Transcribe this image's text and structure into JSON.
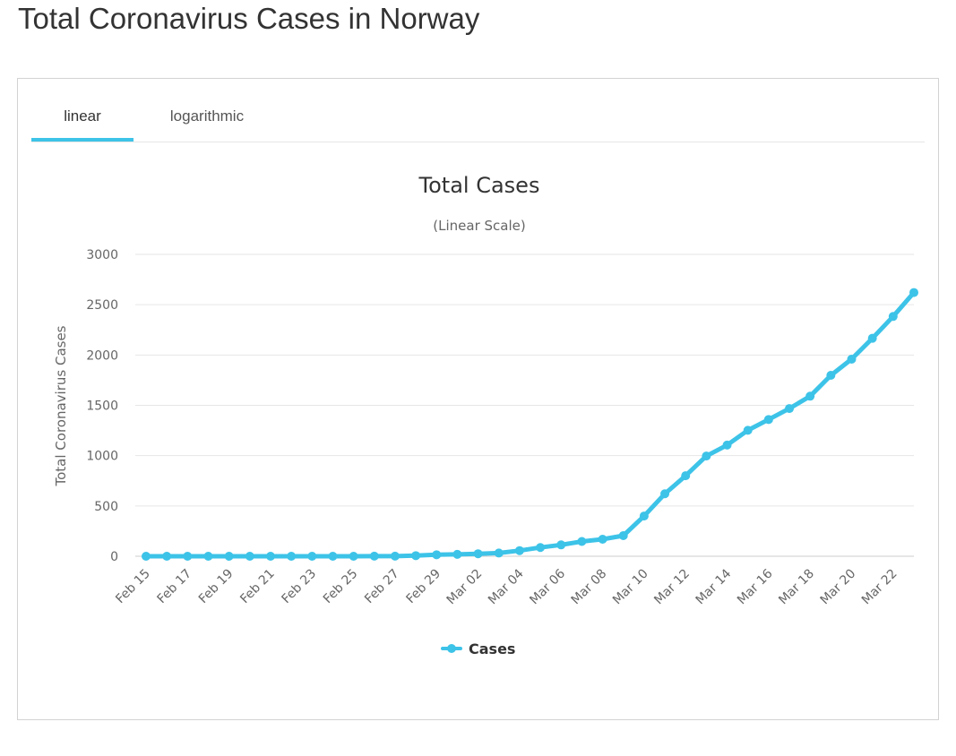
{
  "page": {
    "title": "Total Coronavirus Cases in Norway"
  },
  "tabs": [
    {
      "label": "linear",
      "active": true
    },
    {
      "label": "logarithmic",
      "active": false
    }
  ],
  "colors": {
    "series": "#3dc3e8",
    "grid": "#e6e6e6",
    "tab_underline": "#3dc3e8"
  },
  "chart_data": {
    "type": "line",
    "title": "Total Cases",
    "subtitle": "(Linear Scale)",
    "xlabel": "",
    "ylabel": "Total Coronavirus Cases",
    "ylim": [
      0,
      3000
    ],
    "yticks": [
      0,
      500,
      1000,
      1500,
      2000,
      2500,
      3000
    ],
    "grid": true,
    "legend": "bottom-center",
    "x": [
      "Feb 15",
      "Feb 16",
      "Feb 17",
      "Feb 18",
      "Feb 19",
      "Feb 20",
      "Feb 21",
      "Feb 22",
      "Feb 23",
      "Feb 24",
      "Feb 25",
      "Feb 26",
      "Feb 27",
      "Feb 28",
      "Feb 29",
      "Mar 01",
      "Mar 02",
      "Mar 03",
      "Mar 04",
      "Mar 05",
      "Mar 06",
      "Mar 07",
      "Mar 08",
      "Mar 09",
      "Mar 10",
      "Mar 11",
      "Mar 12",
      "Mar 13",
      "Mar 14",
      "Mar 15",
      "Mar 16",
      "Mar 17",
      "Mar 18",
      "Mar 19",
      "Mar 20",
      "Mar 21",
      "Mar 22",
      "Mar 23"
    ],
    "xtick_labels": [
      "Feb 15",
      "Feb 17",
      "Feb 19",
      "Feb 21",
      "Feb 23",
      "Feb 25",
      "Feb 27",
      "Feb 29",
      "Mar 02",
      "Mar 04",
      "Mar 06",
      "Mar 08",
      "Mar 10",
      "Mar 12",
      "Mar 14",
      "Mar 16",
      "Mar 18",
      "Mar 20",
      "Mar 22"
    ],
    "series": [
      {
        "name": "Cases",
        "values": [
          0,
          0,
          0,
          0,
          0,
          0,
          0,
          0,
          0,
          0,
          0,
          1,
          1,
          6,
          15,
          19,
          25,
          32,
          56,
          87,
          113,
          147,
          169,
          205,
          400,
          621,
          800,
          996,
          1105,
          1252,
          1359,
          1468,
          1591,
          1798,
          1959,
          2166,
          2383,
          2621
        ]
      }
    ]
  }
}
